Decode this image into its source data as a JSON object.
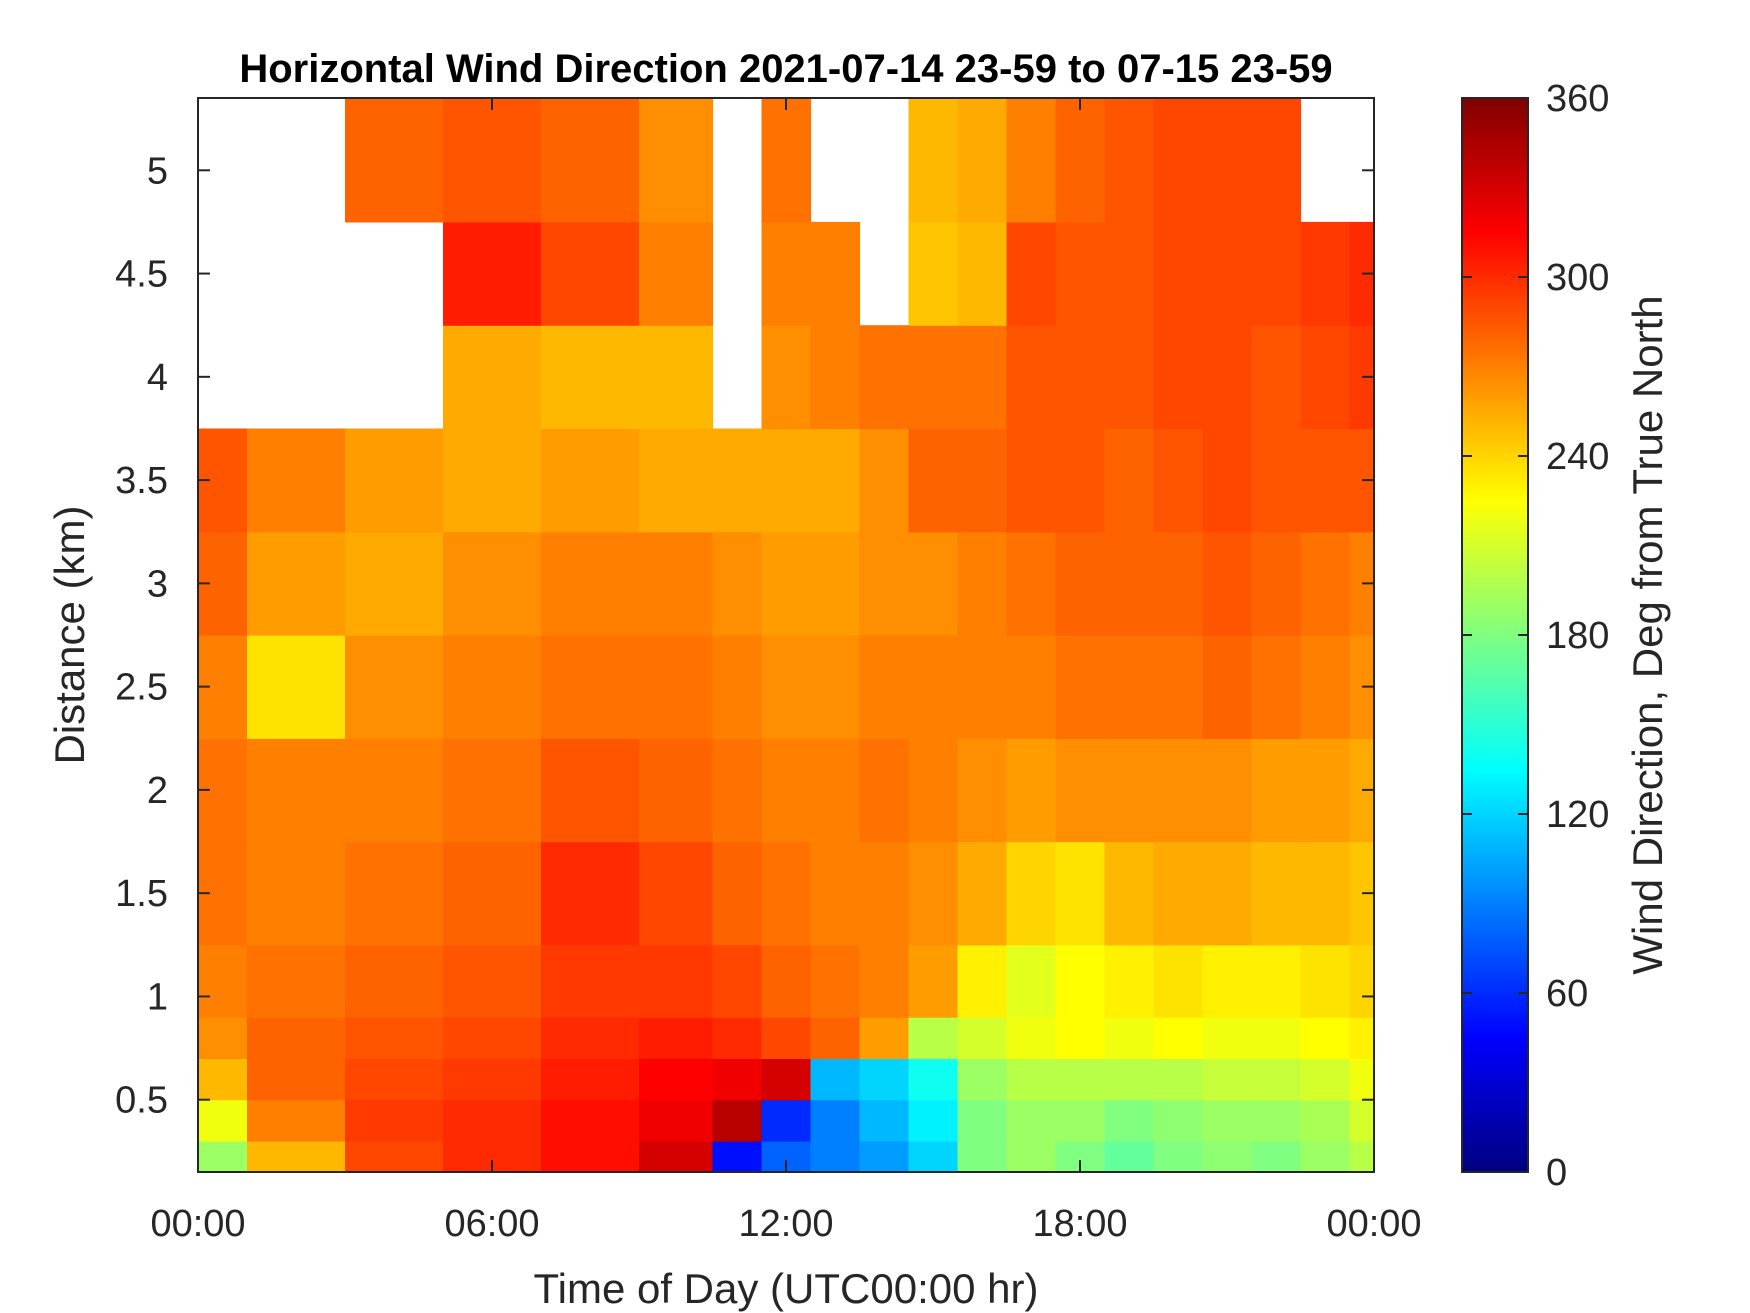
{
  "chart_data": {
    "type": "heatmap",
    "title": "Horizontal Wind Direction 2021-07-14 23-59 to 07-15 23-59",
    "xlabel": "Time of Day (UTC00:00 hr)",
    "ylabel": "Distance (km)",
    "colorbar_label": "Wind Direction, Deg from True North",
    "x_unit": "hours",
    "xlim": [
      0,
      24
    ],
    "ylim": [
      0.15,
      5.35
    ],
    "x_ticks": [
      0,
      6,
      12,
      18,
      24
    ],
    "x_tick_labels": [
      "00:00",
      "06:00",
      "12:00",
      "18:00",
      "00:00"
    ],
    "y_ticks": [
      0.5,
      1,
      1.5,
      2,
      2.5,
      3,
      3.5,
      4,
      4.5,
      5
    ],
    "y_tick_labels": [
      "0.5",
      "1",
      "1.5",
      "2",
      "2.5",
      "3",
      "3.5",
      "4",
      "4.5",
      "5"
    ],
    "colorbar_range": [
      0,
      360
    ],
    "colorbar_ticks": [
      0,
      60,
      120,
      180,
      240,
      300,
      360
    ],
    "colorbar_tick_labels": [
      "0",
      "60",
      "120",
      "180",
      "240",
      "300",
      "360"
    ],
    "colormap": "jet",
    "grid": false,
    "missing_color": "#ffffff",
    "approx_field": {
      "rows_km": [
        0.2,
        0.4,
        0.6,
        0.8,
        1.0,
        1.5,
        2.0,
        2.5,
        3.0,
        3.5,
        4.0,
        4.5,
        5.0
      ],
      "cols_hour": [
        0,
        2,
        4,
        6,
        8,
        10,
        11,
        12,
        13,
        14,
        15,
        16,
        17,
        18,
        19,
        20,
        21,
        22,
        23,
        24
      ],
      "values_deg": [
        [
          190,
          250,
          290,
          300,
          310,
          330,
          50,
          80,
          90,
          100,
          120,
          180,
          190,
          180,
          170,
          180,
          185,
          180,
          190,
          200
        ],
        [
          220,
          270,
          295,
          300,
          310,
          320,
          340,
          60,
          90,
          110,
          130,
          180,
          190,
          190,
          180,
          185,
          190,
          190,
          195,
          210
        ],
        [
          250,
          280,
          290,
          295,
          305,
          315,
          320,
          330,
          110,
          120,
          140,
          190,
          200,
          200,
          200,
          200,
          205,
          205,
          210,
          220
        ],
        [
          265,
          280,
          285,
          290,
          300,
          305,
          300,
          290,
          280,
          260,
          200,
          210,
          220,
          225,
          220,
          225,
          220,
          220,
          225,
          230
        ],
        [
          270,
          275,
          280,
          285,
          295,
          295,
          290,
          280,
          275,
          270,
          260,
          230,
          215,
          225,
          230,
          235,
          230,
          230,
          235,
          240
        ],
        [
          275,
          270,
          275,
          280,
          300,
          290,
          280,
          275,
          270,
          270,
          265,
          255,
          240,
          235,
          250,
          255,
          255,
          250,
          250,
          245
        ],
        [
          275,
          270,
          270,
          275,
          285,
          280,
          275,
          270,
          270,
          275,
          270,
          265,
          260,
          265,
          265,
          265,
          265,
          260,
          260,
          255
        ],
        [
          270,
          235,
          265,
          270,
          275,
          275,
          270,
          265,
          265,
          270,
          270,
          270,
          270,
          275,
          275,
          275,
          280,
          275,
          270,
          265
        ],
        [
          280,
          260,
          255,
          265,
          270,
          270,
          265,
          260,
          260,
          265,
          265,
          270,
          275,
          280,
          280,
          280,
          285,
          280,
          275,
          270
        ],
        [
          285,
          270,
          260,
          255,
          260,
          255,
          255,
          255,
          255,
          265,
          280,
          280,
          285,
          285,
          280,
          285,
          290,
          285,
          285,
          285
        ],
        [
          null,
          null,
          null,
          255,
          250,
          250,
          null,
          265,
          270,
          275,
          275,
          275,
          285,
          285,
          285,
          290,
          290,
          285,
          290,
          295
        ],
        [
          null,
          null,
          null,
          305,
          290,
          270,
          null,
          270,
          270,
          null,
          245,
          250,
          290,
          285,
          285,
          290,
          290,
          290,
          295,
          300
        ],
        [
          null,
          null,
          280,
          285,
          280,
          265,
          null,
          275,
          null,
          null,
          250,
          255,
          270,
          280,
          285,
          290,
          290,
          290,
          null,
          null
        ]
      ]
    }
  }
}
